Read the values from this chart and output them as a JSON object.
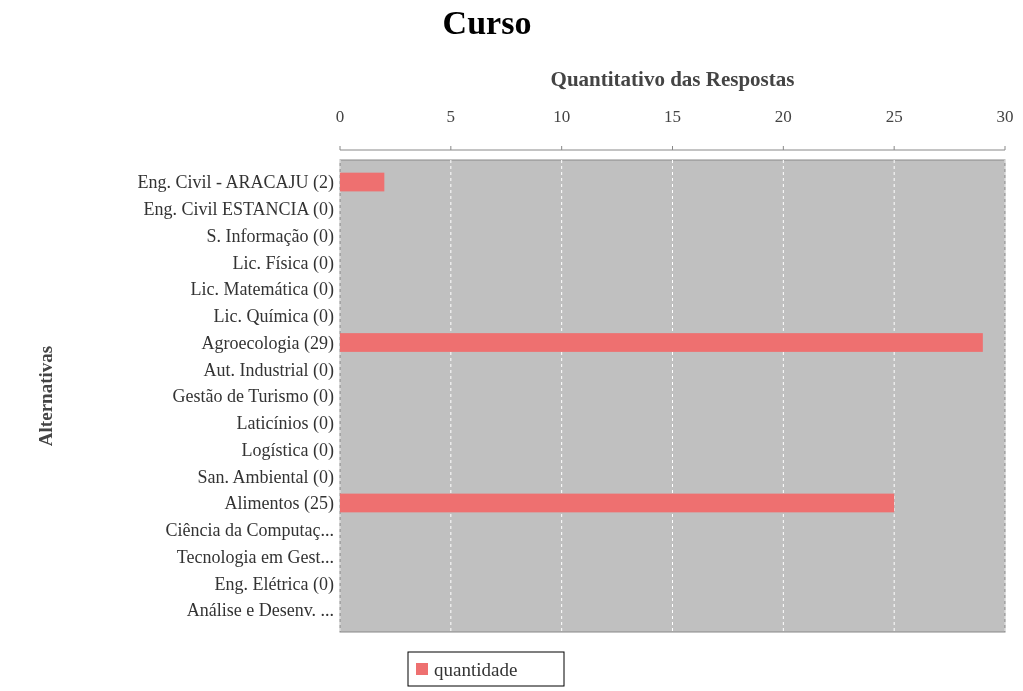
{
  "chart_data": {
    "type": "bar",
    "orientation": "horizontal",
    "title": "Curso",
    "xlabel": "Quantitativo das Respostas",
    "ylabel": "Alternativas",
    "categories": [
      "Eng. Civil - ARACAJU (2)",
      "Eng. Civil ESTANCIA (0)",
      "S. Informação (0)",
      "Lic. Física (0)",
      "Lic. Matemática (0)",
      "Lic. Química (0)",
      "Agroecologia (29)",
      "Aut. Industrial (0)",
      "Gestão de Turismo (0)",
      "Laticínios (0)",
      "Logística (0)",
      "San. Ambiental (0)",
      "Alimentos (25)",
      "Ciência da Computaç...",
      "Tecnologia em Gest...",
      "Eng. Elétrica (0)",
      "Análise e Desenv. ..."
    ],
    "series": [
      {
        "name": "quantidade",
        "color": "#ee7070",
        "values": [
          2,
          0,
          0,
          0,
          0,
          0,
          29,
          0,
          0,
          0,
          0,
          0,
          25,
          0,
          0,
          0,
          0
        ]
      }
    ],
    "xlim": [
      0,
      30
    ],
    "xticks": [
      0,
      5,
      10,
      15,
      20,
      25,
      30
    ],
    "grid": "x",
    "legend": "bottom"
  }
}
